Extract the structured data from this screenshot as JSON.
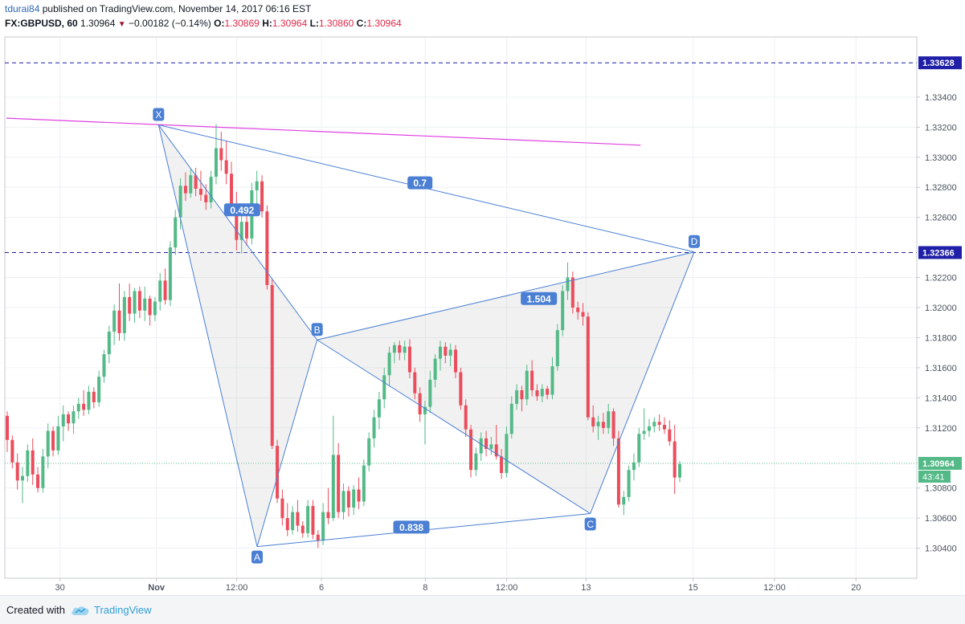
{
  "header": {
    "author": "tdurai84",
    "published_text": "published on TradingView.com, November 14, 2017 06:16 EST",
    "symbol": "FX:GBPUSD, 60",
    "last": "1.30964",
    "change": "−0.00182 (−0.14%)",
    "open_label": "O:",
    "open": "1.30869",
    "high_label": "H:",
    "high": "1.30964",
    "low_label": "L:",
    "low": "1.30860",
    "close_label": "C:",
    "close": "1.30964"
  },
  "footer": {
    "created_with": "Created with",
    "brand": "TradingView"
  },
  "chart_data": {
    "type": "candlestick",
    "symbol": "FX:GBPUSD",
    "interval": "60",
    "grid": true,
    "colors": {
      "up": "#53b987",
      "down": "#eb4d5c",
      "pattern_line": "#4a7fd4",
      "trendline": "#e040e0",
      "level_line": "#1f1fa8",
      "price_line": "#53b987"
    },
    "x_ticks": [
      {
        "label": "30",
        "t": 30
      },
      {
        "label": "Nov",
        "t": 120
      },
      {
        "label": "12:00",
        "t": 195
      },
      {
        "label": "6",
        "t": 274
      },
      {
        "label": "8",
        "t": 371
      },
      {
        "label": "12:00",
        "t": 447
      },
      {
        "label": "13",
        "t": 521
      },
      {
        "label": "15",
        "t": 621
      },
      {
        "label": "12:00",
        "t": 697
      },
      {
        "label": "20",
        "t": 773
      }
    ],
    "x_range": [
      -20,
      811
    ],
    "y_ticks": [
      "1.33400",
      "1.33200",
      "1.33000",
      "1.32800",
      "1.32600",
      "1.32200",
      "1.32000",
      "1.31800",
      "1.31600",
      "1.31400",
      "1.31200",
      "1.30800",
      "1.30600",
      "1.30400"
    ],
    "ylim": [
      1.302,
      1.338
    ],
    "price_labels": [
      {
        "label": "1.33628",
        "price": 1.33628
      },
      {
        "label": "1.32366",
        "price": 1.32366
      }
    ],
    "current_price": {
      "label": "1.30964",
      "price": 1.30964,
      "countdown": "43:41"
    },
    "horizontal_lines": [
      1.33628,
      1.32366
    ],
    "trendline": [
      {
        "t": -20,
        "price": 1.3326
      },
      {
        "t": 572,
        "price": 1.3308
      }
    ],
    "pattern_points": [
      {
        "name": "X",
        "t": 122,
        "price": 1.33215
      },
      {
        "name": "A",
        "t": 214,
        "price": 1.3041
      },
      {
        "name": "B",
        "t": 270,
        "price": 1.31785
      },
      {
        "name": "C",
        "t": 525,
        "price": 1.3063
      },
      {
        "name": "D",
        "t": 622,
        "price": 1.3237
      }
    ],
    "ratios": [
      {
        "label": "0.492",
        "between": "XB",
        "t": 200,
        "price": 1.3265
      },
      {
        "label": "0.838",
        "between": "AC",
        "t": 358,
        "price": 1.3054
      },
      {
        "label": "1.504",
        "between": "BD",
        "t": 477,
        "price": 1.3206
      },
      {
        "label": "0.7",
        "between": "XD",
        "t": 366,
        "price": 1.3283
      }
    ],
    "candles": [
      [
        1.3128,
        1.3131,
        1.3104,
        1.3112
      ],
      [
        1.3112,
        1.3115,
        1.3093,
        1.3097
      ],
      [
        1.3097,
        1.3103,
        1.3079,
        1.3085
      ],
      [
        1.3085,
        1.3094,
        1.307,
        1.3088
      ],
      [
        1.3088,
        1.3109,
        1.3084,
        1.3105
      ],
      [
        1.3105,
        1.3113,
        1.3082,
        1.3089
      ],
      [
        1.3089,
        1.3094,
        1.3077,
        1.308
      ],
      [
        1.308,
        1.3106,
        1.3077,
        1.3101
      ],
      [
        1.3101,
        1.3123,
        1.3093,
        1.3118
      ],
      [
        1.3118,
        1.3121,
        1.3101,
        1.3105
      ],
      [
        1.3105,
        1.3128,
        1.3102,
        1.3121
      ],
      [
        1.3121,
        1.3135,
        1.3111,
        1.3129
      ],
      [
        1.3129,
        1.3131,
        1.3118,
        1.3123
      ],
      [
        1.3123,
        1.3135,
        1.3116,
        1.3131
      ],
      [
        1.3131,
        1.314,
        1.3126,
        1.3136
      ],
      [
        1.3136,
        1.3145,
        1.3128,
        1.3132
      ],
      [
        1.3132,
        1.3148,
        1.3129,
        1.3144
      ],
      [
        1.3144,
        1.3147,
        1.3133,
        1.3137
      ],
      [
        1.3137,
        1.3158,
        1.3134,
        1.3154
      ],
      [
        1.3154,
        1.3172,
        1.315,
        1.3169
      ],
      [
        1.3169,
        1.3188,
        1.3163,
        1.3184
      ],
      [
        1.3184,
        1.3202,
        1.3175,
        1.3198
      ],
      [
        1.3198,
        1.3216,
        1.3178,
        1.3183
      ],
      [
        1.3183,
        1.3211,
        1.3178,
        1.3207
      ],
      [
        1.3207,
        1.3216,
        1.3191,
        1.3196
      ],
      [
        1.3196,
        1.3213,
        1.319,
        1.3211
      ],
      [
        1.3211,
        1.3214,
        1.3193,
        1.3198
      ],
      [
        1.3198,
        1.3214,
        1.3191,
        1.3206
      ],
      [
        1.3206,
        1.3208,
        1.3188,
        1.3195
      ],
      [
        1.3195,
        1.3207,
        1.3191,
        1.3204
      ],
      [
        1.3204,
        1.3223,
        1.3198,
        1.3218
      ],
      [
        1.3218,
        1.3226,
        1.3202,
        1.3205
      ],
      [
        1.3205,
        1.3244,
        1.3201,
        1.324
      ],
      [
        1.324,
        1.3265,
        1.3235,
        1.326
      ],
      [
        1.326,
        1.3286,
        1.3252,
        1.3281
      ],
      [
        1.3281,
        1.329,
        1.3271,
        1.3276
      ],
      [
        1.3276,
        1.3292,
        1.3273,
        1.3288
      ],
      [
        1.3288,
        1.3293,
        1.3274,
        1.3279
      ],
      [
        1.3279,
        1.3291,
        1.3271,
        1.3275
      ],
      [
        1.3275,
        1.3282,
        1.3265,
        1.327
      ],
      [
        1.327,
        1.3291,
        1.3266,
        1.3287
      ],
      [
        1.3287,
        1.3322,
        1.3282,
        1.3306
      ],
      [
        1.3306,
        1.3317,
        1.3291,
        1.3298
      ],
      [
        1.3298,
        1.3311,
        1.3282,
        1.3289
      ],
      [
        1.3289,
        1.3297,
        1.3262,
        1.3265
      ],
      [
        1.3265,
        1.3277,
        1.3238,
        1.3245
      ],
      [
        1.3245,
        1.3263,
        1.3236,
        1.3257
      ],
      [
        1.3257,
        1.3265,
        1.3241,
        1.3246
      ],
      [
        1.3246,
        1.3283,
        1.3242,
        1.3278
      ],
      [
        1.3278,
        1.3291,
        1.3268,
        1.3284
      ],
      [
        1.3284,
        1.3288,
        1.326,
        1.3264
      ],
      [
        1.3264,
        1.3268,
        1.3212,
        1.3215
      ],
      [
        1.3215,
        1.3219,
        1.3106,
        1.3108
      ],
      [
        1.3108,
        1.3112,
        1.307,
        1.3073
      ],
      [
        1.3073,
        1.3079,
        1.3055,
        1.306
      ],
      [
        1.306,
        1.307,
        1.3048,
        1.3052
      ],
      [
        1.3052,
        1.3068,
        1.3049,
        1.3064
      ],
      [
        1.3064,
        1.3072,
        1.3051,
        1.3055
      ],
      [
        1.3055,
        1.3058,
        1.3047,
        1.305
      ],
      [
        1.305,
        1.3072,
        1.3047,
        1.3068
      ],
      [
        1.3068,
        1.3072,
        1.3046,
        1.3049
      ],
      [
        1.3049,
        1.3052,
        1.304,
        1.3045
      ],
      [
        1.3045,
        1.307,
        1.3042,
        1.3064
      ],
      [
        1.3064,
        1.308,
        1.3056,
        1.306
      ],
      [
        1.306,
        1.3128,
        1.3058,
        1.3102
      ],
      [
        1.3102,
        1.311,
        1.306,
        1.3064
      ],
      [
        1.3064,
        1.3083,
        1.3059,
        1.3078
      ],
      [
        1.3078,
        1.3081,
        1.3061,
        1.3067
      ],
      [
        1.3067,
        1.3082,
        1.3062,
        1.3079
      ],
      [
        1.3079,
        1.3087,
        1.3066,
        1.3071
      ],
      [
        1.3071,
        1.3099,
        1.3068,
        1.3095
      ],
      [
        1.3095,
        1.3117,
        1.3091,
        1.3113
      ],
      [
        1.3113,
        1.3132,
        1.3107,
        1.3127
      ],
      [
        1.3127,
        1.3144,
        1.3119,
        1.3139
      ],
      [
        1.3139,
        1.316,
        1.3133,
        1.3155
      ],
      [
        1.3155,
        1.3174,
        1.3148,
        1.317
      ],
      [
        1.317,
        1.3177,
        1.3163,
        1.3175
      ],
      [
        1.3175,
        1.3178,
        1.3165,
        1.317
      ],
      [
        1.317,
        1.3178,
        1.3165,
        1.3174
      ],
      [
        1.3174,
        1.3179,
        1.3153,
        1.3157
      ],
      [
        1.3157,
        1.316,
        1.3139,
        1.3143
      ],
      [
        1.3143,
        1.3147,
        1.3124,
        1.3129
      ],
      [
        1.3129,
        1.3138,
        1.3109,
        1.3134
      ],
      [
        1.3134,
        1.3158,
        1.313,
        1.3152
      ],
      [
        1.3152,
        1.3169,
        1.3147,
        1.3166
      ],
      [
        1.3166,
        1.3178,
        1.3158,
        1.3174
      ],
      [
        1.3174,
        1.3177,
        1.3163,
        1.3168
      ],
      [
        1.3168,
        1.3176,
        1.3161,
        1.3172
      ],
      [
        1.3172,
        1.3175,
        1.3153,
        1.3157
      ],
      [
        1.3157,
        1.316,
        1.3132,
        1.3135
      ],
      [
        1.3135,
        1.3139,
        1.3114,
        1.3119
      ],
      [
        1.3119,
        1.3122,
        1.3087,
        1.3092
      ],
      [
        1.3092,
        1.3107,
        1.3088,
        1.3103
      ],
      [
        1.3103,
        1.3117,
        1.3098,
        1.3113
      ],
      [
        1.3113,
        1.3118,
        1.3101,
        1.3106
      ],
      [
        1.3106,
        1.3114,
        1.3102,
        1.3109
      ],
      [
        1.3109,
        1.3122,
        1.3099,
        1.3101
      ],
      [
        1.3101,
        1.3106,
        1.3086,
        1.309
      ],
      [
        1.309,
        1.3121,
        1.3087,
        1.3116
      ],
      [
        1.3116,
        1.3141,
        1.3113,
        1.3136
      ],
      [
        1.3136,
        1.3149,
        1.3132,
        1.3145
      ],
      [
        1.3145,
        1.3148,
        1.3131,
        1.3139
      ],
      [
        1.3139,
        1.3162,
        1.3135,
        1.3158
      ],
      [
        1.3158,
        1.3165,
        1.3141,
        1.3145
      ],
      [
        1.3145,
        1.3149,
        1.3138,
        1.3141
      ],
      [
        1.3141,
        1.3149,
        1.3137,
        1.3146
      ],
      [
        1.3146,
        1.3148,
        1.3139,
        1.3142
      ],
      [
        1.3142,
        1.3167,
        1.3139,
        1.3161
      ],
      [
        1.3161,
        1.3189,
        1.3158,
        1.3185
      ],
      [
        1.3185,
        1.3215,
        1.3181,
        1.3211
      ],
      [
        1.3211,
        1.323,
        1.3205,
        1.322
      ],
      [
        1.322,
        1.3224,
        1.3196,
        1.32
      ],
      [
        1.32,
        1.3204,
        1.3192,
        1.3197
      ],
      [
        1.3197,
        1.3203,
        1.3188,
        1.3194
      ],
      [
        1.3194,
        1.3197,
        1.3125,
        1.3127
      ],
      [
        1.3127,
        1.3135,
        1.3117,
        1.3121
      ],
      [
        1.3121,
        1.3128,
        1.3112,
        1.3124
      ],
      [
        1.3124,
        1.313,
        1.3116,
        1.312
      ],
      [
        1.312,
        1.3136,
        1.3116,
        1.3131
      ],
      [
        1.3131,
        1.3133,
        1.3108,
        1.3113
      ],
      [
        1.3113,
        1.3118,
        1.3067,
        1.3069
      ],
      [
        1.3069,
        1.3078,
        1.3062,
        1.3074
      ],
      [
        1.3074,
        1.3095,
        1.3071,
        1.3092
      ],
      [
        1.3092,
        1.3103,
        1.3085,
        1.3097
      ],
      [
        1.3097,
        1.312,
        1.3094,
        1.3116
      ],
      [
        1.3116,
        1.3133,
        1.3112,
        1.3118
      ],
      [
        1.3118,
        1.3126,
        1.3114,
        1.3121
      ],
      [
        1.3121,
        1.3127,
        1.3117,
        1.3124
      ],
      [
        1.3124,
        1.3129,
        1.3118,
        1.3122
      ],
      [
        1.3122,
        1.3127,
        1.3116,
        1.3119
      ],
      [
        1.3119,
        1.3125,
        1.3108,
        1.3111
      ],
      [
        1.3111,
        1.3122,
        1.3076,
        1.3087
      ],
      [
        1.3087,
        1.3098,
        1.3084,
        1.3096
      ]
    ]
  }
}
